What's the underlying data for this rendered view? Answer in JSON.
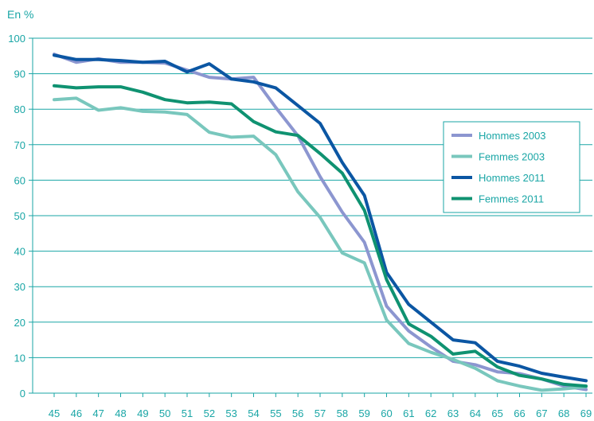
{
  "chart_data": {
    "type": "line",
    "ylabel": "En %",
    "ylim": [
      0,
      100
    ],
    "yticks": [
      0,
      10,
      20,
      30,
      40,
      50,
      60,
      70,
      80,
      90,
      100
    ],
    "x": [
      45,
      46,
      47,
      48,
      49,
      50,
      51,
      52,
      53,
      54,
      55,
      56,
      57,
      58,
      59,
      60,
      61,
      62,
      63,
      64,
      65,
      66,
      67,
      68,
      69
    ],
    "grid": "horizontal",
    "legend_position": "right",
    "series": [
      {
        "name": "Hommes 2003",
        "color": "#8c96d0",
        "values": [
          95.5,
          93.2,
          94.2,
          93.2,
          93.2,
          93.0,
          91.0,
          89.0,
          88.5,
          89.0,
          80.5,
          72.5,
          61.0,
          51.0,
          42.5,
          24.5,
          17.5,
          13.0,
          9.0,
          8.0,
          6.0,
          5.5,
          4.0,
          2.0,
          1.0
        ]
      },
      {
        "name": "Femmes 2003",
        "color": "#79c7bd",
        "values": [
          82.7,
          83.1,
          79.7,
          80.4,
          79.4,
          79.2,
          78.5,
          73.5,
          72.1,
          72.4,
          67.2,
          56.7,
          49.5,
          39.5,
          36.7,
          20.6,
          14.0,
          11.5,
          9.5,
          7.0,
          3.5,
          2.0,
          0.8,
          1.2,
          1.8
        ]
      },
      {
        "name": "Hommes 2011",
        "color": "#0b56a3",
        "values": [
          95.2,
          94.0,
          94.0,
          93.7,
          93.2,
          93.5,
          90.5,
          92.8,
          88.5,
          87.7,
          86.0,
          81.0,
          76.0,
          65.0,
          55.7,
          34.0,
          25.0,
          20.0,
          15.0,
          14.2,
          9.0,
          7.6,
          5.6,
          4.5,
          3.5
        ]
      },
      {
        "name": "Femmes 2011",
        "color": "#0f9271",
        "values": [
          86.6,
          86.0,
          86.3,
          86.3,
          84.8,
          82.7,
          81.8,
          82.0,
          81.5,
          76.5,
          73.6,
          72.6,
          67.5,
          62.0,
          51.5,
          32.0,
          19.5,
          16.0,
          11.0,
          11.8,
          7.4,
          5.0,
          4.0,
          2.5,
          2.0
        ]
      }
    ]
  }
}
